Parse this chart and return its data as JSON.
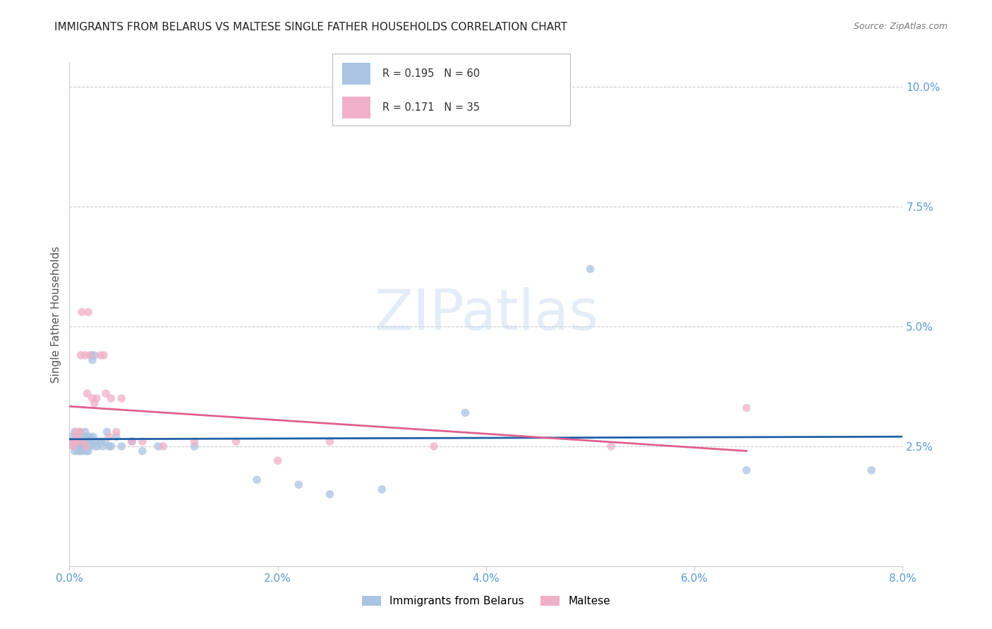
{
  "title": "IMMIGRANTS FROM BELARUS VS MALTESE SINGLE FATHER HOUSEHOLDS CORRELATION CHART",
  "source": "Source: ZipAtlas.com",
  "ylabel": "Single Father Households",
  "watermark": "ZIPatlas",
  "series1": {
    "label": "Immigrants from Belarus",
    "R": 0.195,
    "N": 60,
    "color": "#aac4e2",
    "line_color": "#2060a8",
    "x": [
      0.0002,
      0.0003,
      0.0004,
      0.0005,
      0.0005,
      0.0006,
      0.0007,
      0.0007,
      0.0008,
      0.0008,
      0.0009,
      0.001,
      0.001,
      0.001,
      0.0011,
      0.0011,
      0.0012,
      0.0012,
      0.0013,
      0.0013,
      0.0014,
      0.0015,
      0.0015,
      0.0016,
      0.0016,
      0.0017,
      0.0017,
      0.0018,
      0.0018,
      0.0019,
      0.002,
      0.002,
      0.0021,
      0.0021,
      0.0022,
      0.0023,
      0.0024,
      0.0025,
      0.0026,
      0.0027,
      0.003,
      0.0032,
      0.0034,
      0.0036,
      0.0038,
      0.004,
      0.0045,
      0.005,
      0.006,
      0.007,
      0.0085,
      0.012,
      0.018,
      0.022,
      0.025,
      0.03,
      0.038,
      0.05,
      0.065,
      0.077
    ],
    "y": [
      0.027,
      0.026,
      0.025,
      0.028,
      0.024,
      0.026,
      0.027,
      0.025,
      0.026,
      0.024,
      0.025,
      0.028,
      0.026,
      0.024,
      0.027,
      0.025,
      0.026,
      0.024,
      0.025,
      0.027,
      0.026,
      0.028,
      0.025,
      0.027,
      0.024,
      0.026,
      0.025,
      0.027,
      0.024,
      0.026,
      0.025,
      0.027,
      0.026,
      0.044,
      0.043,
      0.027,
      0.044,
      0.025,
      0.026,
      0.025,
      0.026,
      0.025,
      0.026,
      0.028,
      0.025,
      0.025,
      0.027,
      0.025,
      0.026,
      0.024,
      0.025,
      0.025,
      0.018,
      0.017,
      0.015,
      0.016,
      0.032,
      0.062,
      0.02,
      0.02
    ]
  },
  "series2": {
    "label": "Maltese",
    "R": 0.171,
    "N": 35,
    "color": "#f0b0c8",
    "line_color": "#e06090",
    "x": [
      0.0002,
      0.0004,
      0.0005,
      0.0006,
      0.0007,
      0.0008,
      0.001,
      0.0011,
      0.0012,
      0.0013,
      0.0015,
      0.0016,
      0.0017,
      0.0018,
      0.002,
      0.0022,
      0.0024,
      0.0026,
      0.003,
      0.0033,
      0.0035,
      0.0038,
      0.004,
      0.0045,
      0.005,
      0.006,
      0.007,
      0.009,
      0.012,
      0.016,
      0.02,
      0.025,
      0.035,
      0.052,
      0.065
    ],
    "y": [
      0.026,
      0.025,
      0.026,
      0.028,
      0.027,
      0.026,
      0.028,
      0.044,
      0.053,
      0.026,
      0.044,
      0.025,
      0.036,
      0.053,
      0.044,
      0.035,
      0.034,
      0.035,
      0.044,
      0.044,
      0.036,
      0.027,
      0.035,
      0.028,
      0.035,
      0.026,
      0.026,
      0.025,
      0.026,
      0.026,
      0.022,
      0.026,
      0.025,
      0.025,
      0.033
    ]
  },
  "xlim": [
    0,
    0.08
  ],
  "ylim": [
    0,
    0.105
  ],
  "xticks": [
    0.0,
    0.02,
    0.04,
    0.06,
    0.08
  ],
  "xtick_labels": [
    "0.0%",
    "2.0%",
    "4.0%",
    "6.0%",
    "8.0%"
  ],
  "ytick_vals": [
    0.025,
    0.05,
    0.075,
    0.1
  ],
  "ytick_labels": [
    "2.5%",
    "5.0%",
    "7.5%",
    "10.0%"
  ],
  "grid_color": "#cccccc",
  "bg_color": "#ffffff",
  "title_color": "#222222",
  "axis_color": "#5b9bd5",
  "marker_size": 70
}
